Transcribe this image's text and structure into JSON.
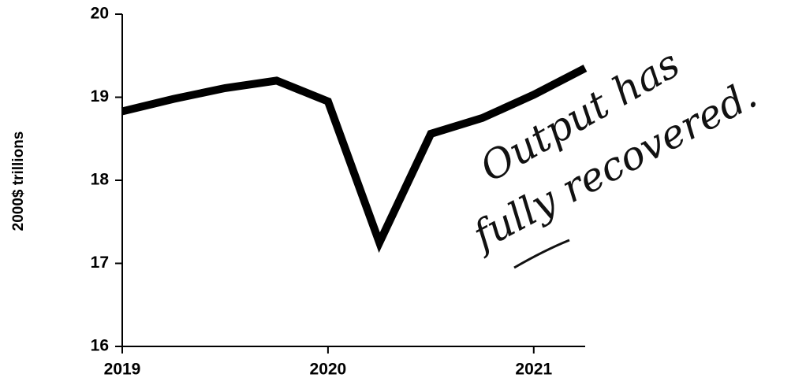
{
  "chart_data": {
    "type": "line",
    "y_label": "2000$ trillions",
    "annotation_lines": [
      "Output has",
      "fully recovered."
    ],
    "x": [
      2019,
      2019.25,
      2019.5,
      2019.75,
      2020,
      2020.25,
      2020.5,
      2020.75,
      2021,
      2021.25
    ],
    "series": [
      {
        "color": "#000000",
        "values": [
          18.83,
          18.98,
          19.11,
          19.2,
          18.95,
          17.25,
          18.56,
          18.75,
          19.03,
          19.35
        ]
      }
    ],
    "xlim": [
      2019,
      2021.25
    ],
    "xticks": [
      2019,
      2020,
      2021
    ],
    "ylim": [
      16,
      20
    ],
    "yticks": [
      16,
      17,
      18,
      19,
      20
    ]
  }
}
